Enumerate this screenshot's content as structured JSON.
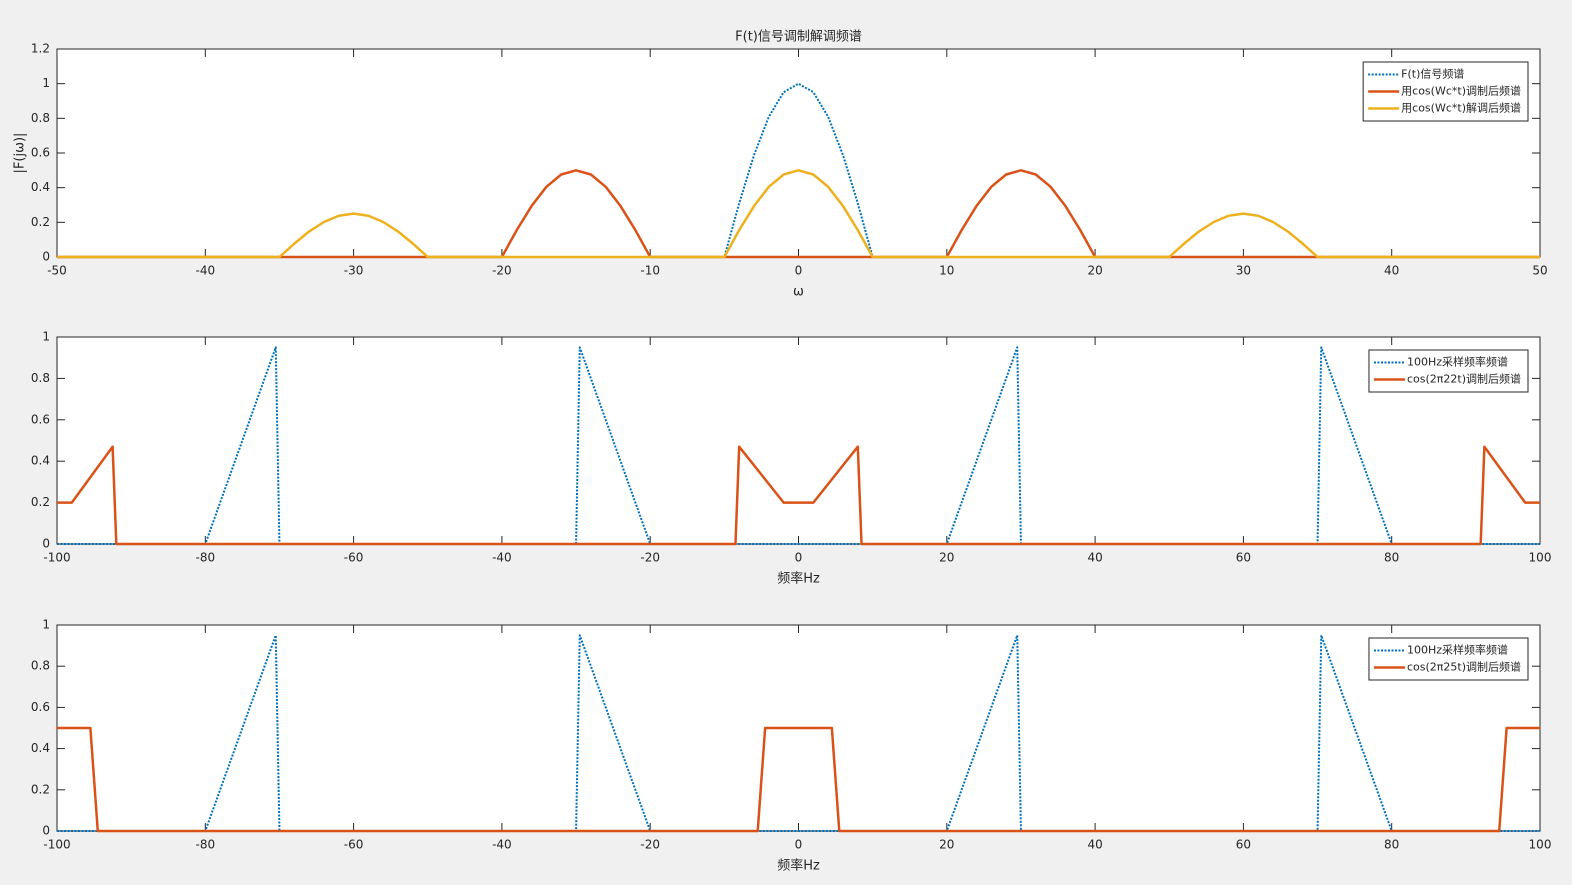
{
  "chart_data": [
    {
      "type": "line",
      "title": "F(t)信号调制解调频谱",
      "xlabel": "ω",
      "ylabel": "|F(jω)|",
      "xlim": [
        -50,
        50
      ],
      "xticks": [
        -50,
        -40,
        -30,
        -20,
        -10,
        0,
        10,
        20,
        30,
        40,
        50
      ],
      "ylim": [
        0,
        1.2
      ],
      "yticks": [
        0,
        0.2,
        0.4,
        0.6,
        0.8,
        1,
        1.2
      ],
      "legend": "upper right",
      "series": [
        {
          "name": "F(t)信号频谱",
          "color": "#0072bd",
          "linestyle": "dotted",
          "x": [
            -50,
            -5,
            -4,
            -3,
            -2,
            -1,
            0,
            1,
            2,
            3,
            4,
            5,
            50
          ],
          "values": [
            0,
            0,
            0.309,
            0.588,
            0.809,
            0.951,
            1,
            0.951,
            0.809,
            0.588,
            0.309,
            0,
            0
          ]
        },
        {
          "name": "用cos(Wc*t)调制后频谱",
          "color": "#d95319",
          "linestyle": "solid",
          "x": [
            -50,
            -20,
            -19,
            -18,
            -17,
            -16,
            -15,
            -14,
            -13,
            -12,
            -11,
            -10,
            10,
            11,
            12,
            13,
            14,
            15,
            16,
            17,
            18,
            19,
            20,
            50
          ],
          "values": [
            0,
            0,
            0.155,
            0.294,
            0.405,
            0.476,
            0.5,
            0.476,
            0.405,
            0.294,
            0.155,
            0,
            0,
            0.155,
            0.294,
            0.405,
            0.476,
            0.5,
            0.476,
            0.405,
            0.294,
            0.155,
            0,
            0
          ]
        },
        {
          "name": "用cos(Wc*t)解调后频谱",
          "color": "#edb120",
          "linestyle": "solid",
          "x": [
            -50,
            -35,
            -34,
            -33,
            -32,
            -31,
            -30,
            -29,
            -28,
            -27,
            -26,
            -25,
            -5,
            -4,
            -3,
            -2,
            -1,
            0,
            1,
            2,
            3,
            4,
            5,
            25,
            26,
            27,
            28,
            29,
            30,
            31,
            32,
            33,
            34,
            35,
            50
          ],
          "values": [
            0,
            0,
            0.077,
            0.147,
            0.202,
            0.238,
            0.25,
            0.238,
            0.202,
            0.147,
            0.077,
            0,
            0,
            0.155,
            0.294,
            0.405,
            0.476,
            0.5,
            0.476,
            0.405,
            0.294,
            0.155,
            0,
            0,
            0.077,
            0.147,
            0.202,
            0.238,
            0.25,
            0.238,
            0.202,
            0.147,
            0.077,
            0,
            0
          ]
        }
      ]
    },
    {
      "type": "line",
      "xlabel": "频率Hz",
      "xlim": [
        -100,
        100
      ],
      "xticks": [
        -100,
        -80,
        -60,
        -40,
        -20,
        0,
        20,
        40,
        60,
        80,
        100
      ],
      "ylim": [
        0,
        1
      ],
      "yticks": [
        0,
        0.2,
        0.4,
        0.6,
        0.8,
        1
      ],
      "legend": "upper right",
      "series": [
        {
          "name": "100Hz采样频率频谱",
          "color": "#0072bd",
          "linestyle": "dotted",
          "x": [
            -100,
            -80,
            -70.5,
            -70,
            -30,
            -29.5,
            -20,
            20,
            29.5,
            30,
            70,
            70.5,
            80,
            100
          ],
          "values": [
            0,
            0,
            0.95,
            0,
            0,
            0.95,
            0,
            0,
            0.95,
            0,
            0,
            0.95,
            0,
            0
          ]
        },
        {
          "name": "cos(2π22t)调制后频谱",
          "color": "#d95319",
          "linestyle": "solid",
          "x": [
            -100,
            -98,
            -92.5,
            -92,
            -8.5,
            -8,
            -2,
            2,
            8,
            8.5,
            92,
            92.5,
            98,
            100
          ],
          "values": [
            0.2,
            0.2,
            0.47,
            0,
            0,
            0.47,
            0.2,
            0.2,
            0.47,
            0,
            0,
            0.47,
            0.2,
            0.2
          ]
        }
      ]
    },
    {
      "type": "line",
      "xlabel": "频率Hz",
      "xlim": [
        -100,
        100
      ],
      "xticks": [
        -100,
        -80,
        -60,
        -40,
        -20,
        0,
        20,
        40,
        60,
        80,
        100
      ],
      "ylim": [
        0,
        1
      ],
      "yticks": [
        0,
        0.2,
        0.4,
        0.6,
        0.8,
        1
      ],
      "legend": "upper right",
      "series": [
        {
          "name": "100Hz采样频率频谱",
          "color": "#0072bd",
          "linestyle": "dotted",
          "x": [
            -100,
            -80,
            -70.5,
            -70,
            -30,
            -29.5,
            -20,
            20,
            29.5,
            30,
            70,
            70.5,
            80,
            100
          ],
          "values": [
            0,
            0,
            0.95,
            0,
            0,
            0.95,
            0,
            0,
            0.95,
            0,
            0,
            0.95,
            0,
            0
          ]
        },
        {
          "name": "cos(2π25t)调制后频谱",
          "color": "#d95319",
          "linestyle": "solid",
          "x": [
            -100,
            -95.5,
            -94.5,
            -5.5,
            -4.5,
            4.5,
            5.5,
            94.5,
            95.5,
            100
          ],
          "values": [
            0.5,
            0.5,
            0,
            0,
            0.5,
            0.5,
            0,
            0,
            0.5,
            0.5
          ]
        }
      ]
    }
  ]
}
